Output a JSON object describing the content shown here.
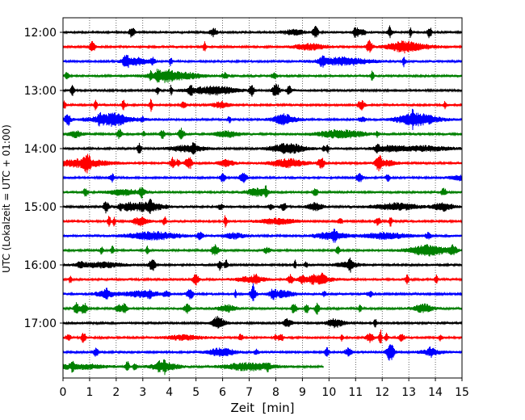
{
  "chart_data": {
    "type": "line",
    "title": "",
    "xlabel": "Zeit  [min]",
    "ylabel": "UTC (Lokalzeit = UTC + 01:00)",
    "xlim": [
      0,
      15
    ],
    "x_ticks": [
      "0",
      "1",
      "2",
      "3",
      "4",
      "5",
      "6",
      "7",
      "8",
      "9",
      "10",
      "11",
      "12",
      "13",
      "14",
      "15"
    ],
    "y_ticks": [
      "12:00",
      "13:00",
      "14:00",
      "15:00",
      "16:00",
      "17:00"
    ],
    "trace_interval_min": 15,
    "grid": {
      "x": "dotted",
      "y": false
    },
    "line_colors": [
      "#000000",
      "#ff0000",
      "#0000ff",
      "#008000"
    ],
    "series": [
      {
        "start": "12:00",
        "color": "#000000",
        "end_min": 15
      },
      {
        "start": "12:15",
        "color": "#ff0000",
        "end_min": 15
      },
      {
        "start": "12:30",
        "color": "#0000ff",
        "end_min": 15
      },
      {
        "start": "12:45",
        "color": "#008000",
        "end_min": 15
      },
      {
        "start": "13:00",
        "color": "#000000",
        "end_min": 15
      },
      {
        "start": "13:15",
        "color": "#ff0000",
        "end_min": 15
      },
      {
        "start": "13:30",
        "color": "#0000ff",
        "end_min": 15
      },
      {
        "start": "13:45",
        "color": "#008000",
        "end_min": 15
      },
      {
        "start": "14:00",
        "color": "#000000",
        "end_min": 15
      },
      {
        "start": "14:15",
        "color": "#ff0000",
        "end_min": 15
      },
      {
        "start": "14:30",
        "color": "#0000ff",
        "end_min": 15
      },
      {
        "start": "14:45",
        "color": "#008000",
        "end_min": 15
      },
      {
        "start": "15:00",
        "color": "#000000",
        "end_min": 15
      },
      {
        "start": "15:15",
        "color": "#ff0000",
        "end_min": 15
      },
      {
        "start": "15:30",
        "color": "#0000ff",
        "end_min": 15
      },
      {
        "start": "15:45",
        "color": "#008000",
        "end_min": 15
      },
      {
        "start": "16:00",
        "color": "#000000",
        "end_min": 15
      },
      {
        "start": "16:15",
        "color": "#ff0000",
        "end_min": 15
      },
      {
        "start": "16:30",
        "color": "#0000ff",
        "end_min": 15
      },
      {
        "start": "16:45",
        "color": "#008000",
        "end_min": 15
      },
      {
        "start": "17:00",
        "color": "#000000",
        "end_min": 15
      },
      {
        "start": "17:15",
        "color": "#ff0000",
        "end_min": 15
      },
      {
        "start": "17:30",
        "color": "#0000ff",
        "end_min": 15
      },
      {
        "start": "17:45",
        "color": "#008000",
        "end_min": 9.8
      }
    ]
  }
}
